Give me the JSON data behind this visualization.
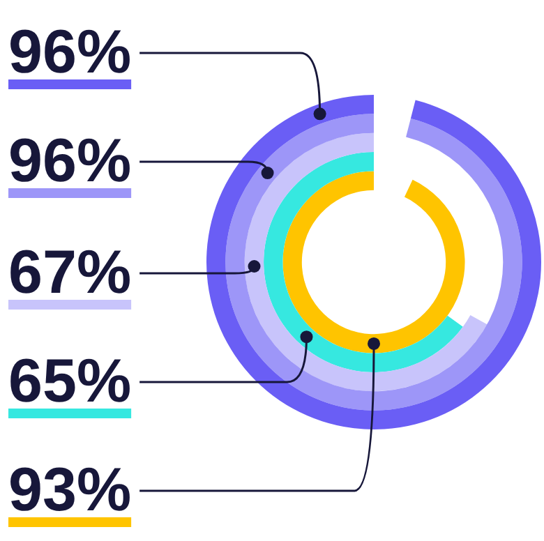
{
  "chart_data": {
    "type": "other",
    "categories": [
      null,
      null,
      null,
      null,
      null
    ],
    "values": [
      96,
      96,
      67,
      65,
      93
    ],
    "value_labels": [
      "96%",
      "96%",
      "67%",
      "65%",
      "93%"
    ],
    "colors": [
      "#6a5ef5",
      "#9d96f8",
      "#c8c4fb",
      "#36e8e0",
      "#ffc400"
    ]
  }
}
